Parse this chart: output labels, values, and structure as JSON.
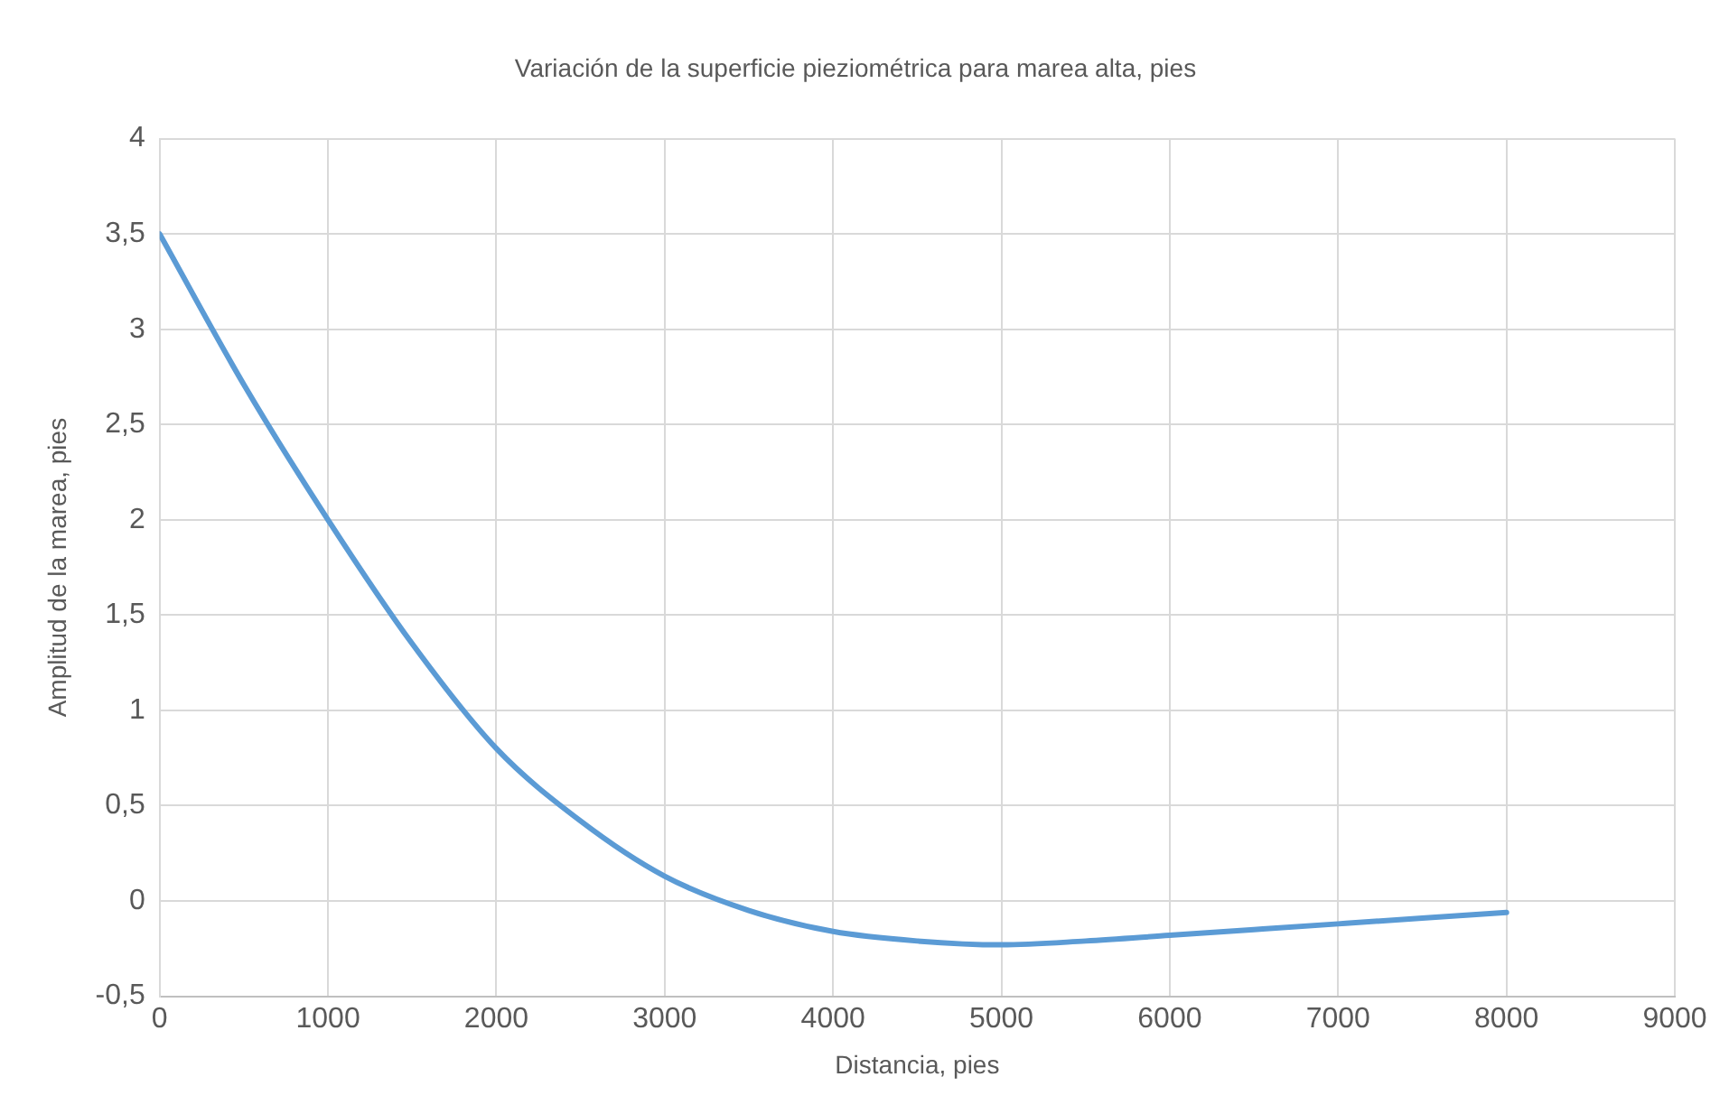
{
  "chart_data": {
    "type": "line",
    "title": "Variación de la superficie pieziométrica para marea alta, pies",
    "xlabel": "Distancia, pies",
    "ylabel": "Amplitud de la marea, pies",
    "x": [
      0,
      500,
      1000,
      1500,
      2000,
      2500,
      3000,
      3500,
      4000,
      4500,
      5000,
      5500,
      6000,
      6500,
      7000,
      7500,
      8000
    ],
    "series": [
      {
        "color": "#5b9bd5",
        "values": [
          3.5,
          2.71,
          2.0,
          1.35,
          0.8,
          0.42,
          0.13,
          -0.05,
          -0.16,
          -0.21,
          -0.23,
          -0.21,
          -0.18,
          -0.15,
          -0.12,
          -0.09,
          -0.06
        ]
      }
    ],
    "xlim": [
      0,
      9000
    ],
    "xticks": [
      0,
      1000,
      2000,
      3000,
      4000,
      5000,
      6000,
      7000,
      8000,
      9000
    ],
    "ylim": [
      -0.5,
      4
    ],
    "yticks": [
      {
        "value": -0.5,
        "label": "-0,5"
      },
      0,
      {
        "value": 0.5,
        "label": "0,5"
      },
      1,
      {
        "value": 1.5,
        "label": "1,5"
      },
      2,
      {
        "value": 2.5,
        "label": "2,5"
      },
      3,
      {
        "value": 3.5,
        "label": "3,5"
      },
      4
    ],
    "grid": true,
    "legend": false,
    "marker": "none",
    "line_style": "solid"
  }
}
